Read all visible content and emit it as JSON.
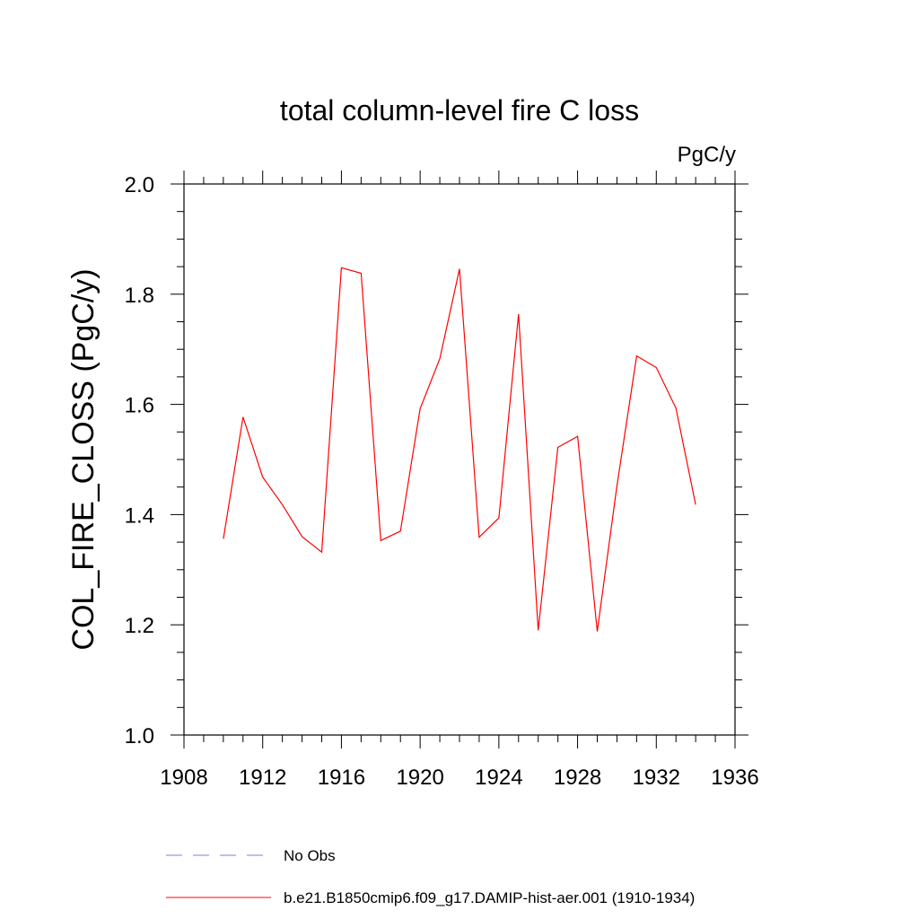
{
  "chart_data": {
    "type": "line",
    "title": "total column-level fire C loss",
    "units_label": "PgC/y",
    "ylabel": "COL_FIRE_CLOSS  (PgC/y)",
    "xlabel": "",
    "xlim": [
      1908,
      1936
    ],
    "ylim": [
      1.0,
      2.0
    ],
    "x_ticks": [
      1908,
      1912,
      1916,
      1920,
      1924,
      1928,
      1932,
      1936
    ],
    "x_tick_labels": [
      "1908",
      "1912",
      "1916",
      "1920",
      "1924",
      "1928",
      "1932",
      "1936"
    ],
    "y_ticks": [
      1.0,
      1.2,
      1.4,
      1.6,
      1.8,
      2.0
    ],
    "y_tick_labels": [
      "1.0",
      "1.2",
      "1.4",
      "1.6",
      "1.8",
      "2.0"
    ],
    "grid": false,
    "legend_position": "bottom",
    "series": [
      {
        "name": "No Obs",
        "color": "#7f7fd0",
        "dash": "dashed",
        "x": [],
        "y": []
      },
      {
        "name": "b.e21.B1850cmip6.f09_g17.DAMIP-hist-aer.001 (1910-1934)",
        "color": "#ff0000",
        "dash": "solid",
        "x": [
          1910,
          1911,
          1912,
          1913,
          1914,
          1915,
          1916,
          1917,
          1918,
          1919,
          1920,
          1921,
          1922,
          1923,
          1924,
          1925,
          1926,
          1927,
          1928,
          1929,
          1930,
          1931,
          1932,
          1933,
          1934
        ],
        "y": [
          1.356,
          1.577,
          1.468,
          1.418,
          1.36,
          1.332,
          1.848,
          1.838,
          1.353,
          1.37,
          1.592,
          1.683,
          1.846,
          1.359,
          1.394,
          1.764,
          1.19,
          1.522,
          1.542,
          1.188,
          1.452,
          1.688,
          1.667,
          1.593,
          1.418
        ]
      }
    ]
  }
}
